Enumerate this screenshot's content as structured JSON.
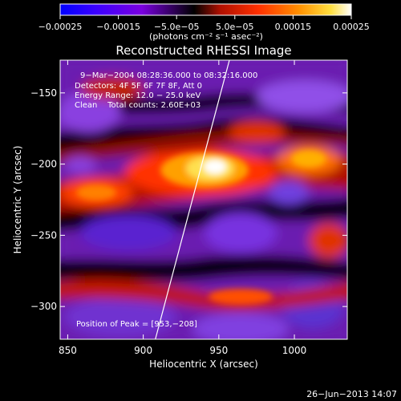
{
  "chart_data": {
    "type": "heatmap",
    "title": "Reconstructed RHESSI Image",
    "xlabel": "Heliocentric X (arcsec)",
    "ylabel": "Heliocentric Y (arcsec)",
    "xlim": [
      845,
      1035
    ],
    "ylim": [
      -323,
      -127
    ],
    "x_ticks": [
      850,
      900,
      950,
      1000
    ],
    "y_ticks": [
      -150,
      -200,
      -250,
      -300
    ],
    "x_tick_labels": [
      "850",
      "900",
      "950",
      "1000"
    ],
    "y_tick_labels": [
      "−150",
      "−200",
      "−250",
      "−300"
    ],
    "colorbar": {
      "range": [
        -0.00025,
        0.00025
      ],
      "ticks": [
        -0.00025,
        -0.00015,
        -5e-05,
        5e-05,
        0.00015,
        0.00025
      ],
      "tick_labels": [
        "−0.00025",
        "−0.00015",
        "−5.0e−05",
        "5.0e−05",
        "0.00015",
        "0.00025"
      ],
      "unit_label": "(photons cm⁻² s⁻¹ asec⁻²)",
      "colors": [
        "#0000ff",
        "#3a00ff",
        "#7a00e0",
        "#000000",
        "#b01000",
        "#ff3000",
        "#ff9000",
        "#ffe040",
        "#ffffff"
      ]
    },
    "annotations": [
      "9−Mar−2004 08:28:36.000 to 08:32:16.000",
      "Detectors: 4F 5F 6F 7F 8F, Att 0",
      "Energy Range: 12.0 − 25.0 keV",
      "Clean    Total counts: 2.60E+03"
    ],
    "peak_label": "Position of Peak = [953,−208]",
    "peak": [
      953,
      -208
    ],
    "limb_line": [
      [
        908,
        -323
      ],
      [
        957,
        -127
      ]
    ]
  },
  "footer": {
    "timestamp": "26−Jun−2013 14:07"
  }
}
